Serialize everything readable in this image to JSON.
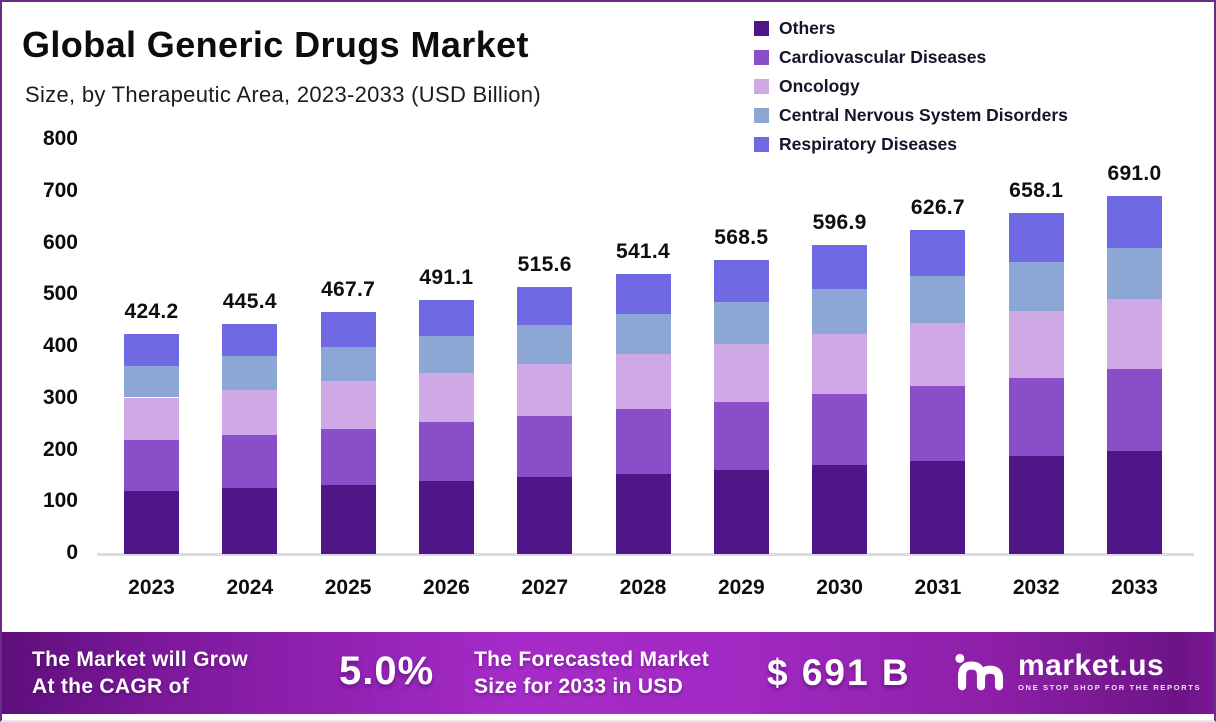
{
  "frame": {
    "border_color": "#6b2d87",
    "background": "#ffffff"
  },
  "header": {
    "title": "Global Generic Drugs Market",
    "subtitle": "Size, by Therapeutic Area, 2023-2033 (USD Billion)"
  },
  "chart_data": {
    "type": "bar",
    "stacked": true,
    "title": "Global Generic Drugs Market",
    "subtitle": "Size, by Therapeutic Area, 2023-2033 (USD Billion)",
    "unit": "USD Billion",
    "categories": [
      "2023",
      "2024",
      "2025",
      "2026",
      "2027",
      "2028",
      "2029",
      "2030",
      "2031",
      "2032",
      "2033"
    ],
    "totals": [
      424.2,
      445.4,
      467.7,
      491.1,
      515.6,
      541.4,
      568.5,
      596.9,
      626.7,
      658.1,
      691.0
    ],
    "series": [
      {
        "name": "Others",
        "color": "#4f1687",
        "values": [
          121.7,
          127.8,
          134.2,
          140.9,
          148.0,
          155.4,
          163.2,
          171.3,
          179.9,
          188.9,
          198.3
        ]
      },
      {
        "name": "Cardiovascular Diseases",
        "color": "#8a4ec8",
        "values": [
          98.0,
          102.9,
          108.0,
          113.4,
          119.1,
          125.1,
          131.3,
          137.9,
          144.8,
          152.0,
          159.6
        ]
      },
      {
        "name": "Oncology",
        "color": "#cfa9e6",
        "values": [
          82.7,
          86.9,
          91.2,
          95.8,
          100.5,
          105.6,
          110.9,
          116.4,
          122.2,
          128.3,
          134.7
        ]
      },
      {
        "name": "Central Nervous System Disorders",
        "color": "#8ca6d6",
        "values": [
          61.1,
          64.1,
          67.3,
          70.7,
          74.2,
          78.0,
          81.9,
          85.9,
          90.2,
          94.8,
          99.5
        ]
      },
      {
        "name": "Respiratory Diseases",
        "color": "#6f69e4",
        "values": [
          60.7,
          63.7,
          67.0,
          70.3,
          73.8,
          77.3,
          81.2,
          85.4,
          89.6,
          94.1,
          98.9
        ]
      }
    ],
    "stack_order": "first-series-at-bottom",
    "ylim": [
      0,
      800
    ],
    "yticks": [
      0,
      100,
      200,
      300,
      400,
      500,
      600,
      700,
      800
    ],
    "grid": false,
    "legend_position": "top-right",
    "bar_value_labels": "total above each bar, one decimal"
  },
  "banner": {
    "grow_line1": "The Market will Grow",
    "grow_line2": "At the CAGR of",
    "cagr_value": "5.0%",
    "forecast_line1": "The Forecasted Market",
    "forecast_line2": "Size for 2033 in USD",
    "forecast_value": "$ 691 B",
    "brand_name": "market.us",
    "brand_tagline": "ONE STOP SHOP FOR THE REPORTS"
  }
}
